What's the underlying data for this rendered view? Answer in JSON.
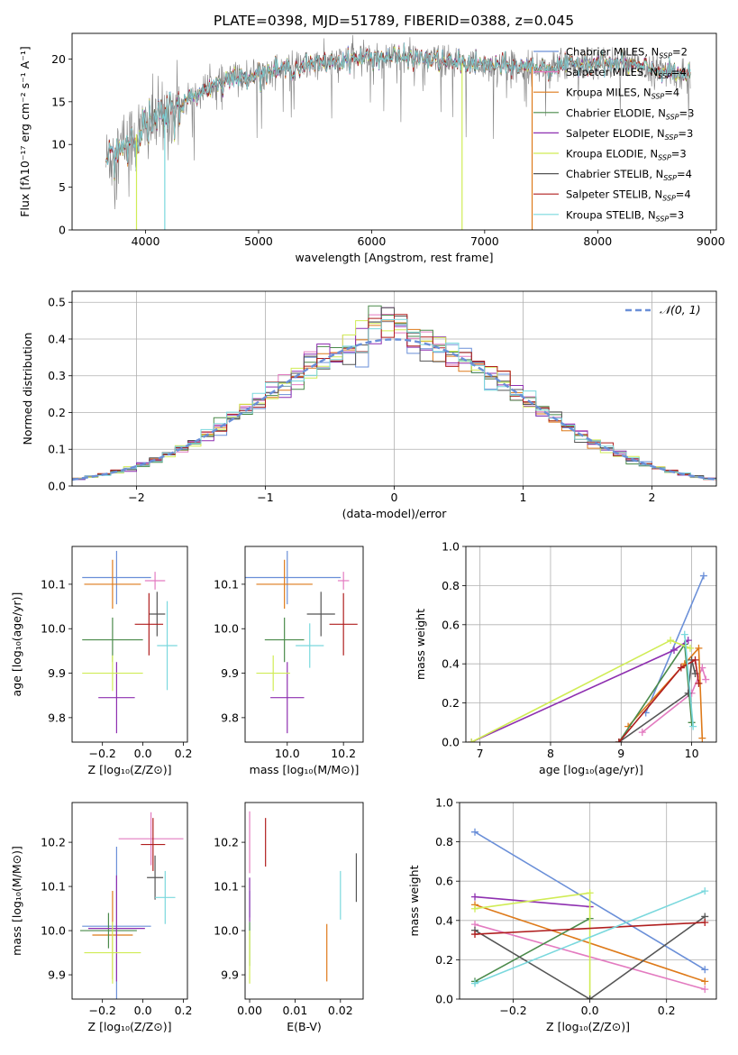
{
  "figure_title": "PLATE=0398, MJD=51789, FIBERID=0388, z=0.045",
  "colors": {
    "chabrier_miles": "#6a8fd8",
    "salpeter_miles": "#e37bc0",
    "kroupa_miles": "#de7a1a",
    "chabrier_elodie": "#4a8a4a",
    "salpeter_elodie": "#8e2fb0",
    "kroupa_elodie": "#d0ec55",
    "chabrier_stelib": "#555555",
    "salpeter_stelib": "#b01e1e",
    "kroupa_stelib": "#7ad8dd",
    "data": "#808080",
    "normal": "#6a8fd8"
  },
  "chart_data": [
    {
      "type": "line",
      "title": "PLATE=0398, MJD=51789, FIBERID=0388, z=0.045",
      "xlabel": "wavelength [Angstrom, rest frame]",
      "ylabel": "Flux [fλ10⁻¹⁷ erg cm⁻² s⁻¹ A⁻¹]",
      "xlim": [
        3350,
        9050
      ],
      "ylim": [
        0,
        23
      ],
      "xticks": [
        4000,
        5000,
        6000,
        7000,
        8000,
        9000
      ],
      "yticks": [
        0,
        5,
        10,
        15,
        20
      ],
      "legend": [
        "Chabrier MILES, N_SSP=2",
        "Salpeter MILES, N_SSP=4",
        "Kroupa MILES, N_SSP=4",
        "Chabrier ELODIE, N_SSP=3",
        "Salpeter ELODIE, N_SSP=3",
        "Kroupa ELODIE, N_SSP=3",
        "Chabrier STELIB, N_SSP=4",
        "Salpeter STELIB, N_SSP=4",
        "Kroupa STELIB, N_SSP=3"
      ],
      "legend_position": "right",
      "continuum": {
        "x": [
          3650,
          3800,
          4000,
          4200,
          4400,
          4600,
          4800,
          5000,
          5200,
          5400,
          5600,
          5800,
          6000,
          6200,
          6400,
          6600,
          6800,
          7000,
          7200,
          7400,
          7600,
          7800,
          8000,
          8200,
          8400,
          8600,
          8800
        ],
        "y": [
          8,
          10,
          12,
          13.5,
          15.5,
          17,
          17.8,
          18.3,
          18.8,
          19.2,
          19.5,
          20,
          20.2,
          20.3,
          20.1,
          19.8,
          19.5,
          19.3,
          19.2,
          19.1,
          19.0,
          19.5,
          19.6,
          19.4,
          19.0,
          18.5,
          18.0
        ]
      },
      "x_range": [
        3650,
        8820
      ],
      "drops": [
        {
          "series": "Kroupa ELODIE",
          "x": 3920
        },
        {
          "series": "Kroupa STELIB",
          "x": 4170
        },
        {
          "series": "Kroupa ELODIE",
          "x": 6800
        },
        {
          "series": "Kroupa MILES",
          "x": 7420
        }
      ]
    },
    {
      "type": "histogram",
      "xlabel": "(data-model)/error",
      "ylabel": "Normed distribution",
      "xlim": [
        -2.5,
        2.5
      ],
      "ylim": [
        0,
        0.53
      ],
      "xticks": [
        -2,
        -1,
        0,
        1,
        2
      ],
      "yticks": [
        0.0,
        0.1,
        0.2,
        0.3,
        0.4,
        0.5
      ],
      "grid": true,
      "legend": [
        "𝒩(0, 1)"
      ],
      "legend_position": "top-right",
      "bin_width": 0.1
    },
    {
      "type": "errorbar",
      "xlabel": "Z [log₁₀(Z/Z⊙)]",
      "ylabel": "age  [log₁₀(age/yr)]",
      "xlim": [
        -0.35,
        0.22
      ],
      "ylim": [
        9.745,
        10.185
      ],
      "xticks": [
        -0.2,
        0.0,
        0.2
      ],
      "yticks": [
        9.8,
        9.9,
        10.0,
        10.1
      ],
      "points": [
        {
          "series": "Chabrier MILES",
          "x": -0.13,
          "y": 10.115,
          "xerr": 0.17,
          "yerr": 0.06
        },
        {
          "series": "Salpeter MILES",
          "x": 0.06,
          "y": 10.108,
          "xerr": 0.05,
          "yerr": 0.02
        },
        {
          "series": "Kroupa MILES",
          "x": -0.15,
          "y": 10.1,
          "xerr": 0.14,
          "yerr": 0.055
        },
        {
          "series": "Chabrier ELODIE",
          "x": -0.15,
          "y": 9.975,
          "xerr": 0.15,
          "yerr": 0.05
        },
        {
          "series": "Salpeter ELODIE",
          "x": -0.13,
          "y": 9.845,
          "xerr": 0.09,
          "yerr": 0.08
        },
        {
          "series": "Kroupa ELODIE",
          "x": -0.15,
          "y": 9.9,
          "xerr": 0.15,
          "yerr": 0.04
        },
        {
          "series": "Chabrier STELIB",
          "x": 0.07,
          "y": 10.033,
          "xerr": 0.04,
          "yerr": 0.05
        },
        {
          "series": "Salpeter STELIB",
          "x": 0.03,
          "y": 10.01,
          "xerr": 0.07,
          "yerr": 0.07
        },
        {
          "series": "Kroupa STELIB",
          "x": 0.12,
          "y": 9.962,
          "xerr": 0.05,
          "yerr": 0.1
        }
      ]
    },
    {
      "type": "errorbar",
      "xlabel": "mass [log₁₀(M/M⊙)]",
      "xlim": [
        9.85,
        10.27
      ],
      "ylim": [
        9.745,
        10.185
      ],
      "xticks": [
        10.0,
        10.2
      ],
      "yticks": [
        9.8,
        9.9,
        10.0,
        10.1
      ],
      "points": [
        {
          "series": "Chabrier MILES",
          "x": 10.0,
          "y": 10.115,
          "xerr": 0.19,
          "yerr": 0.06
        },
        {
          "series": "Salpeter MILES",
          "x": 10.2,
          "y": 10.108,
          "xerr": 0.02,
          "yerr": 0.02
        },
        {
          "series": "Kroupa MILES",
          "x": 9.99,
          "y": 10.1,
          "xerr": 0.1,
          "yerr": 0.055
        },
        {
          "series": "Chabrier ELODIE",
          "x": 9.99,
          "y": 9.975,
          "xerr": 0.07,
          "yerr": 0.05
        },
        {
          "series": "Salpeter ELODIE",
          "x": 10.0,
          "y": 9.845,
          "xerr": 0.06,
          "yerr": 0.08
        },
        {
          "series": "Kroupa ELODIE",
          "x": 9.95,
          "y": 9.9,
          "xerr": 0.06,
          "yerr": 0.04
        },
        {
          "series": "Chabrier STELIB",
          "x": 10.12,
          "y": 10.033,
          "xerr": 0.05,
          "yerr": 0.05
        },
        {
          "series": "Salpeter STELIB",
          "x": 10.2,
          "y": 10.01,
          "xerr": 0.05,
          "yerr": 0.07
        },
        {
          "series": "Kroupa STELIB",
          "x": 10.08,
          "y": 9.962,
          "xerr": 0.05,
          "yerr": 0.05
        }
      ]
    },
    {
      "type": "line",
      "xlabel": "age  [log₁₀(age/yr)]",
      "ylabel": "mass weight",
      "xlim": [
        6.8,
        10.35
      ],
      "ylim": [
        0,
        1.0
      ],
      "xticks": [
        7,
        8,
        9,
        10
      ],
      "yticks": [
        0.0,
        0.2,
        0.4,
        0.6,
        0.8,
        1.0
      ],
      "grid": true,
      "series": [
        {
          "name": "Chabrier MILES",
          "x": [
            9.35,
            10.17
          ],
          "y": [
            0.15,
            0.85
          ]
        },
        {
          "name": "Salpeter MILES",
          "x": [
            9.3,
            10.0,
            10.15,
            10.2
          ],
          "y": [
            0.05,
            0.25,
            0.38,
            0.32
          ]
        },
        {
          "name": "Kroupa MILES",
          "x": [
            9.1,
            9.9,
            10.1,
            10.15
          ],
          "y": [
            0.08,
            0.4,
            0.48,
            0.02
          ]
        },
        {
          "name": "Chabrier ELODIE",
          "x": [
            8.97,
            9.9,
            10.0
          ],
          "y": [
            0.0,
            0.5,
            0.1
          ]
        },
        {
          "name": "Salpeter ELODIE",
          "x": [
            6.88,
            9.75,
            9.95
          ],
          "y": [
            0.0,
            0.47,
            0.52
          ]
        },
        {
          "name": "Kroupa ELODIE",
          "x": [
            6.88,
            9.7,
            9.98
          ],
          "y": [
            0.0,
            0.52,
            0.48
          ]
        },
        {
          "name": "Chabrier STELIB",
          "x": [
            8.97,
            9.95,
            10.0,
            10.05
          ],
          "y": [
            0.0,
            0.25,
            0.42,
            0.35
          ]
        },
        {
          "name": "Salpeter STELIB",
          "x": [
            8.97,
            9.85,
            10.05,
            10.1
          ],
          "y": [
            0.0,
            0.38,
            0.42,
            0.3
          ]
        },
        {
          "name": "Kroupa STELIB",
          "x": [
            9.9,
            10.02
          ],
          "y": [
            0.55,
            0.08
          ]
        }
      ]
    },
    {
      "type": "errorbar",
      "xlabel": "Z [log₁₀(Z/Z⊙)]",
      "ylabel": "mass [log₁₀(M/M⊙)]",
      "xlim": [
        -0.35,
        0.22
      ],
      "ylim": [
        9.845,
        10.29
      ],
      "xticks": [
        -0.2,
        0.0,
        0.2
      ],
      "yticks": [
        9.9,
        10.0,
        10.1,
        10.2
      ],
      "points": [
        {
          "series": "Chabrier MILES",
          "x": -0.13,
          "y": 10.01,
          "xerr": 0.17,
          "yerr": 0.18
        },
        {
          "series": "Salpeter MILES",
          "x": 0.04,
          "y": 10.208,
          "xerr": 0.16,
          "yerr": 0.06
        },
        {
          "series": "Kroupa MILES",
          "x": -0.15,
          "y": 9.99,
          "xerr": 0.1,
          "yerr": 0.1
        },
        {
          "series": "Chabrier ELODIE",
          "x": -0.17,
          "y": 10.0,
          "xerr": 0.14,
          "yerr": 0.04
        },
        {
          "series": "Salpeter ELODIE",
          "x": -0.13,
          "y": 10.005,
          "xerr": 0.14,
          "yerr": 0.12
        },
        {
          "series": "Kroupa ELODIE",
          "x": -0.15,
          "y": 9.95,
          "xerr": 0.14,
          "yerr": 0.07
        },
        {
          "series": "Chabrier STELIB",
          "x": 0.06,
          "y": 10.12,
          "xerr": 0.04,
          "yerr": 0.05
        },
        {
          "series": "Salpeter STELIB",
          "x": 0.05,
          "y": 10.195,
          "xerr": 0.06,
          "yerr": 0.06
        },
        {
          "series": "Kroupa STELIB",
          "x": 0.11,
          "y": 10.075,
          "xerr": 0.05,
          "yerr": 0.06
        }
      ]
    },
    {
      "type": "errorbar",
      "xlabel": "E(B-V)",
      "xlim": [
        -0.001,
        0.025
      ],
      "ylim": [
        9.845,
        10.29
      ],
      "xticks": [
        0.0,
        0.01,
        0.02
      ],
      "yticks": [
        9.9,
        10.0,
        10.1,
        10.2
      ],
      "points": [
        {
          "series": "Chabrier MILES",
          "x": 0.0,
          "y": 10.06,
          "yerr": 0.03
        },
        {
          "series": "Salpeter MILES",
          "x": 0.0,
          "y": 10.2,
          "yerr": 0.07
        },
        {
          "series": "Kroupa MILES",
          "x": 0.017,
          "y": 9.95,
          "yerr": 0.065
        },
        {
          "series": "Chabrier ELODIE",
          "x": 0.0,
          "y": 9.97,
          "yerr": 0.05
        },
        {
          "series": "Salpeter ELODIE",
          "x": 0.0,
          "y": 10.07,
          "yerr": 0.05
        },
        {
          "series": "Kroupa ELODIE",
          "x": 0.0,
          "y": 9.94,
          "yerr": 0.06
        },
        {
          "series": "Chabrier STELIB",
          "x": 0.0235,
          "y": 10.12,
          "yerr": 0.055
        },
        {
          "series": "Salpeter STELIB",
          "x": 0.0035,
          "y": 10.2,
          "yerr": 0.055
        },
        {
          "series": "Kroupa STELIB",
          "x": 0.02,
          "y": 10.08,
          "yerr": 0.055
        }
      ]
    },
    {
      "type": "line",
      "xlabel": "Z [log₁₀(Z/Z⊙)]",
      "ylabel": "mass weight",
      "xlim": [
        -0.34,
        0.33
      ],
      "ylim": [
        0,
        1.0
      ],
      "xticks": [
        -0.2,
        0.0,
        0.2
      ],
      "yticks": [
        0.0,
        0.2,
        0.4,
        0.6,
        0.8,
        1.0
      ],
      "grid": true,
      "series": [
        {
          "name": "Chabrier MILES",
          "x": [
            -0.3,
            0.3
          ],
          "y": [
            0.85,
            0.15
          ]
        },
        {
          "name": "Salpeter MILES",
          "x": [
            -0.3,
            0.3
          ],
          "y": [
            0.38,
            0.05
          ]
        },
        {
          "name": "Kroupa MILES",
          "x": [
            -0.3,
            0.3
          ],
          "y": [
            0.48,
            0.09
          ]
        },
        {
          "name": "Chabrier ELODIE",
          "x": [
            -0.3,
            0.0
          ],
          "y": [
            0.09,
            0.41
          ]
        },
        {
          "name": "Salpeter ELODIE",
          "x": [
            -0.3,
            0.0
          ],
          "y": [
            0.52,
            0.47
          ]
        },
        {
          "name": "Kroupa ELODIE",
          "x": [
            -0.3,
            0.0,
            0.0
          ],
          "y": [
            0.46,
            0.54,
            0.0
          ]
        },
        {
          "name": "Chabrier STELIB",
          "x": [
            -0.3,
            0.0,
            0.3
          ],
          "y": [
            0.35,
            0.0,
            0.42
          ]
        },
        {
          "name": "Salpeter STELIB",
          "x": [
            -0.3,
            0.3
          ],
          "y": [
            0.33,
            0.39
          ]
        },
        {
          "name": "Kroupa STELIB",
          "x": [
            -0.3,
            0.3
          ],
          "y": [
            0.08,
            0.55
          ]
        }
      ]
    }
  ]
}
